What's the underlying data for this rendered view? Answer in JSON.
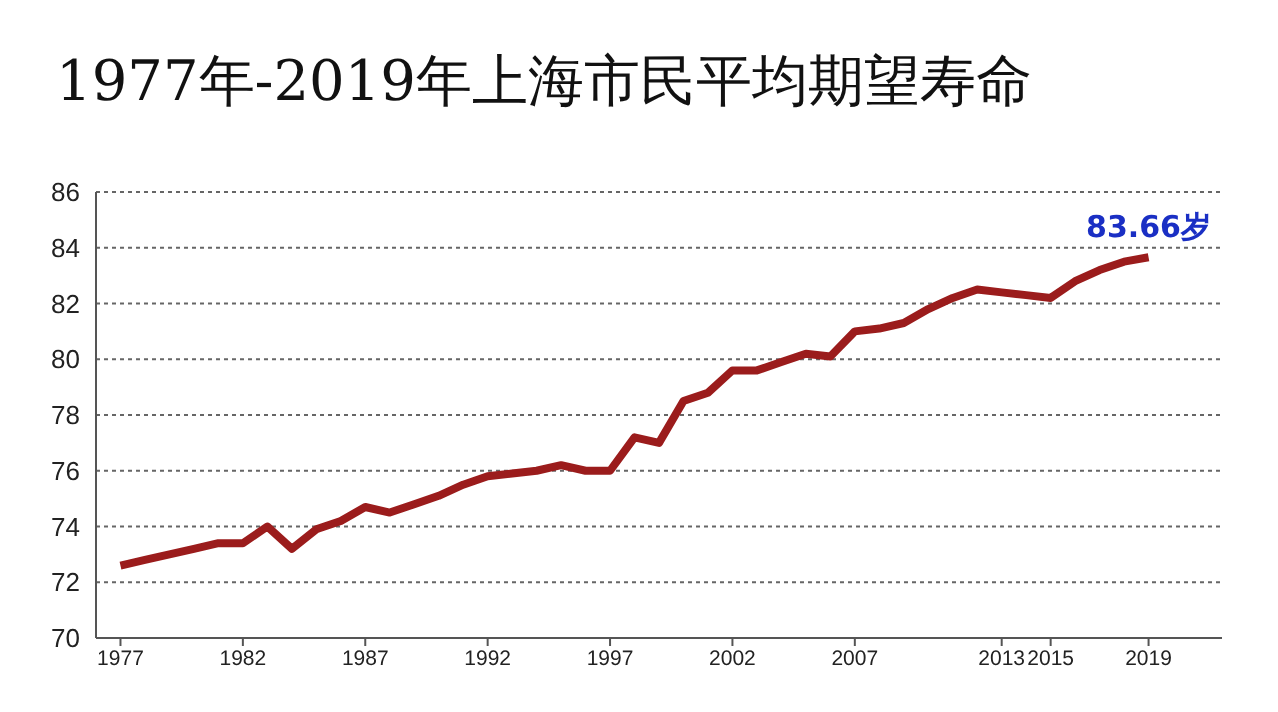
{
  "chart_data": {
    "type": "line",
    "title": "1977年-2019年上海市民平均期望寿命",
    "x": [
      1977,
      1978,
      1979,
      1980,
      1981,
      1982,
      1983,
      1984,
      1985,
      1986,
      1987,
      1988,
      1989,
      1990,
      1991,
      1992,
      1993,
      1994,
      1995,
      1996,
      1997,
      1998,
      1999,
      2000,
      2001,
      2002,
      2003,
      2004,
      2005,
      2006,
      2007,
      2008,
      2009,
      2010,
      2011,
      2012,
      2013,
      2014,
      2015,
      2016,
      2017,
      2018,
      2019
    ],
    "series": [
      {
        "color": "#9b1c1c",
        "values": [
          72.6,
          72.8,
          73.0,
          73.2,
          73.4,
          73.4,
          74.0,
          73.2,
          73.9,
          74.2,
          74.7,
          74.5,
          74.8,
          75.1,
          75.5,
          75.8,
          75.9,
          76.0,
          76.2,
          76.0,
          76.0,
          77.2,
          77.0,
          78.5,
          78.8,
          79.6,
          79.6,
          79.9,
          80.2,
          80.1,
          81.0,
          81.1,
          81.3,
          81.8,
          82.2,
          82.5,
          82.4,
          82.3,
          82.2,
          82.8,
          83.2,
          83.5,
          83.66
        ]
      }
    ],
    "annotations": [
      {
        "text": "83.66岁",
        "x": 2019,
        "y": 83.66
      }
    ],
    "xlim": [
      1976,
      2022
    ],
    "xticks": [
      1977,
      1982,
      1987,
      1992,
      1997,
      2002,
      2007,
      2013,
      2015,
      2019
    ],
    "ylim": [
      70,
      86
    ],
    "yticks": [
      70,
      72,
      74,
      76,
      78,
      80,
      82,
      84,
      86
    ],
    "grid": "y",
    "marker": "none",
    "line_style": "solid"
  }
}
